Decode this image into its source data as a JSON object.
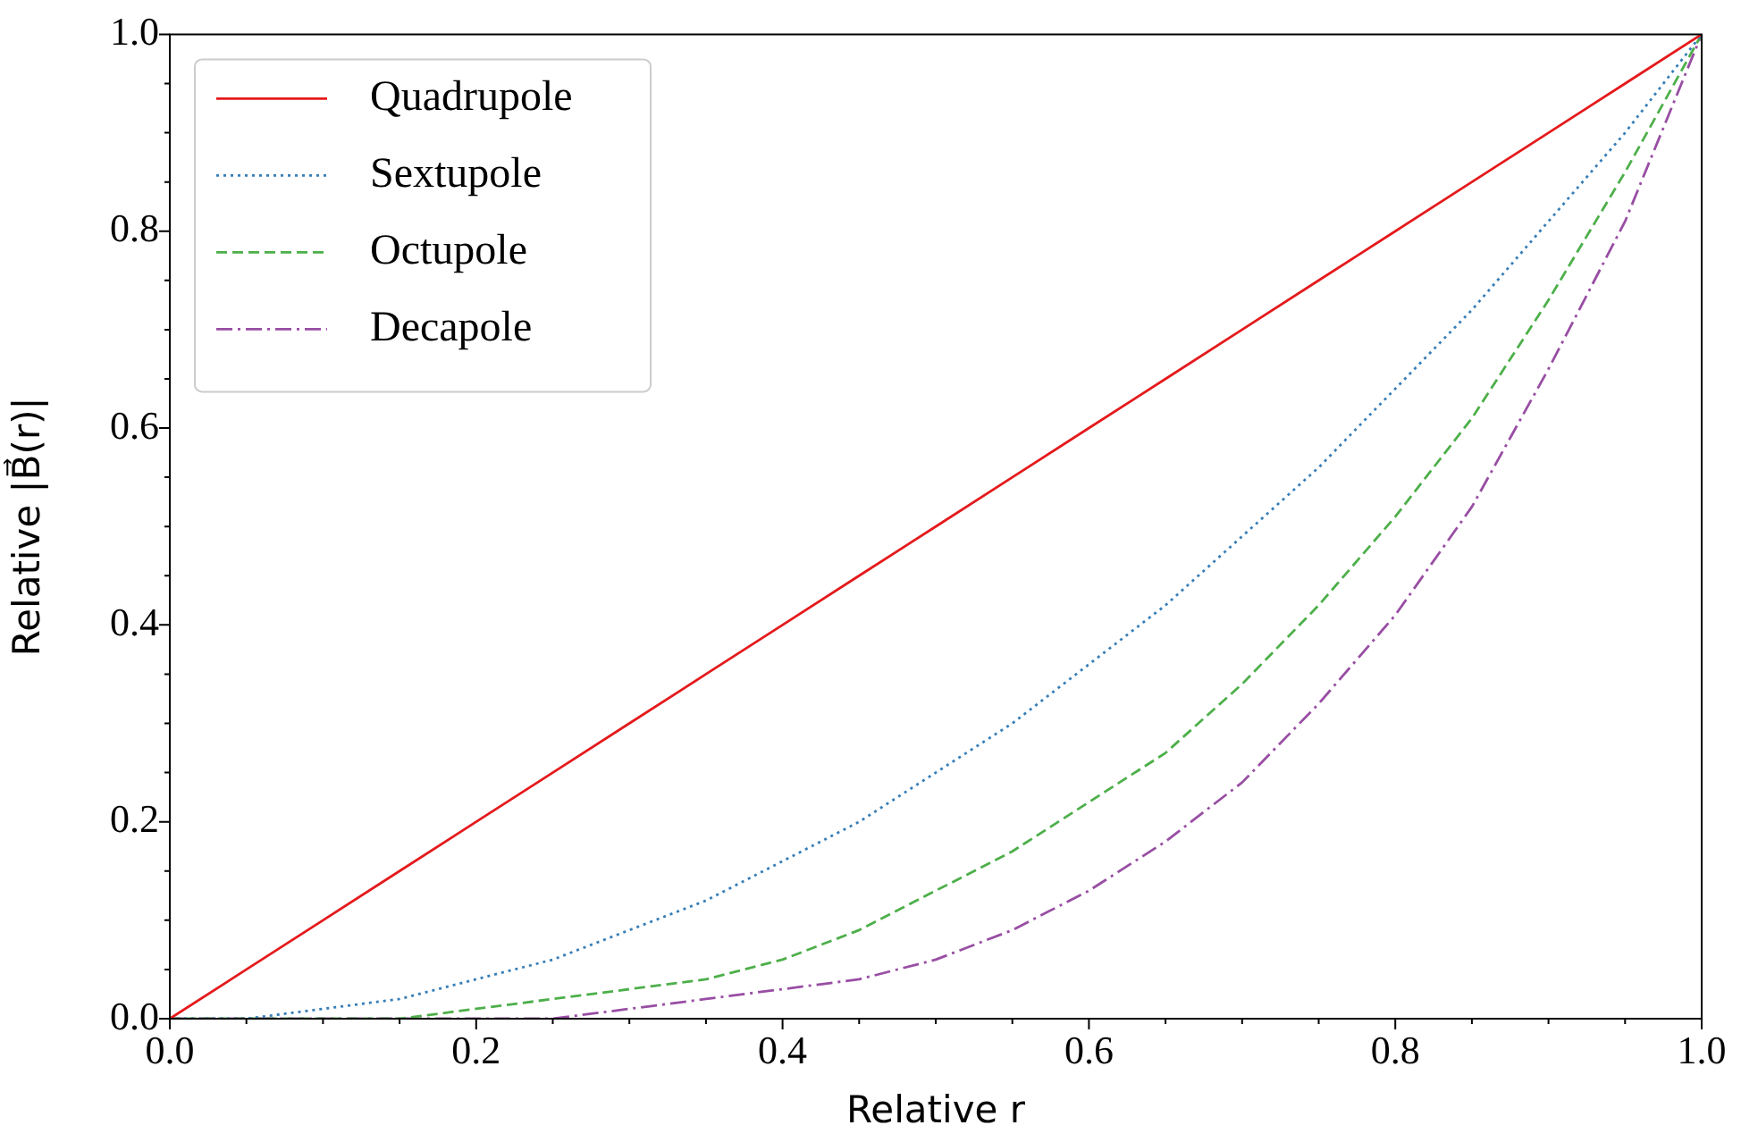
{
  "chart_data": {
    "type": "line",
    "xlabel": "Relative r",
    "ylabel": "Relative |B⃗(r)|",
    "x": [
      0,
      0.05,
      0.1,
      0.15,
      0.2,
      0.25,
      0.3,
      0.35,
      0.4,
      0.45,
      0.5,
      0.55,
      0.6,
      0.65,
      0.7,
      0.75,
      0.8,
      0.85,
      0.9,
      0.95,
      1
    ],
    "series": [
      {
        "name": "Quadrupole",
        "color": "#e41a1c",
        "line_style": "solid",
        "values": [
          0,
          0.05,
          0.1,
          0.15,
          0.2,
          0.25,
          0.3,
          0.35,
          0.4,
          0.45,
          0.5,
          0.55,
          0.6,
          0.65,
          0.7,
          0.75,
          0.8,
          0.85,
          0.9,
          0.95,
          1
        ]
      },
      {
        "name": "Sextupole",
        "color": "#377eb8",
        "line_style": "dotted",
        "values": [
          0,
          0,
          0.01,
          0.02,
          0.04,
          0.06,
          0.09,
          0.12,
          0.16,
          0.2,
          0.25,
          0.3,
          0.36,
          0.42,
          0.49,
          0.56,
          0.64,
          0.72,
          0.81,
          0.9,
          1
        ]
      },
      {
        "name": "Octupole",
        "color": "#4daf4a",
        "line_style": "dashed",
        "values": [
          0,
          0,
          0,
          0,
          0.01,
          0.02,
          0.03,
          0.04,
          0.06,
          0.09,
          0.13,
          0.17,
          0.22,
          0.27,
          0.34,
          0.42,
          0.51,
          0.61,
          0.73,
          0.86,
          1
        ]
      },
      {
        "name": "Decapole",
        "color": "#984ea3",
        "line_style": "dashdot",
        "values": [
          0,
          0,
          0,
          0,
          0,
          0,
          0.01,
          0.02,
          0.03,
          0.04,
          0.06,
          0.09,
          0.13,
          0.18,
          0.24,
          0.32,
          0.41,
          0.52,
          0.66,
          0.81,
          1
        ]
      }
    ],
    "xlim": [
      0,
      1
    ],
    "ylim": [
      0,
      1
    ],
    "xticks": [
      {
        "value": 0,
        "label": "0.0"
      },
      {
        "value": 0.05,
        "label": null
      },
      {
        "value": 0.1,
        "label": null
      },
      {
        "value": 0.15,
        "label": null
      },
      {
        "value": 0.2,
        "label": "0.2"
      },
      {
        "value": 0.25,
        "label": null
      },
      {
        "value": 0.3,
        "label": null
      },
      {
        "value": 0.35,
        "label": null
      },
      {
        "value": 0.4,
        "label": "0.4"
      },
      {
        "value": 0.45,
        "label": null
      },
      {
        "value": 0.5,
        "label": null
      },
      {
        "value": 0.55,
        "label": null
      },
      {
        "value": 0.6,
        "label": "0.6"
      },
      {
        "value": 0.65,
        "label": null
      },
      {
        "value": 0.7,
        "label": null
      },
      {
        "value": 0.75,
        "label": null
      },
      {
        "value": 0.8,
        "label": "0.8"
      },
      {
        "value": 0.85,
        "label": null
      },
      {
        "value": 0.9,
        "label": null
      },
      {
        "value": 0.95,
        "label": null
      },
      {
        "value": 1,
        "label": "1.0"
      }
    ],
    "yticks": [
      {
        "value": 0,
        "label": "0.0"
      },
      {
        "value": 0.05,
        "label": null
      },
      {
        "value": 0.1,
        "label": null
      },
      {
        "value": 0.15,
        "label": null
      },
      {
        "value": 0.2,
        "label": "0.2"
      },
      {
        "value": 0.25,
        "label": null
      },
      {
        "value": 0.3,
        "label": null
      },
      {
        "value": 0.35,
        "label": null
      },
      {
        "value": 0.4,
        "label": "0.4"
      },
      {
        "value": 0.45,
        "label": null
      },
      {
        "value": 0.5,
        "label": null
      },
      {
        "value": 0.55,
        "label": null
      },
      {
        "value": 0.6,
        "label": "0.6"
      },
      {
        "value": 0.65,
        "label": null
      },
      {
        "value": 0.7,
        "label": null
      },
      {
        "value": 0.75,
        "label": null
      },
      {
        "value": 0.8,
        "label": "0.8"
      },
      {
        "value": 0.85,
        "label": null
      },
      {
        "value": 0.9,
        "label": null
      },
      {
        "value": 0.95,
        "label": null
      },
      {
        "value": 1,
        "label": "1.0"
      }
    ],
    "legend": "top left",
    "marker": "none"
  }
}
